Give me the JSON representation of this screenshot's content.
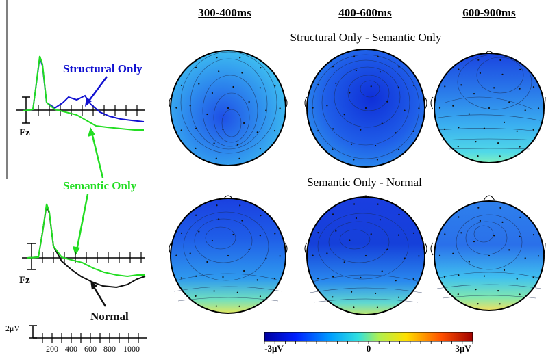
{
  "columns": [
    "300-400ms",
    "400-600ms",
    "600-900ms"
  ],
  "rows": [
    {
      "title": "Structural Only - Semantic Only"
    },
    {
      "title": "Semantic Only - Normal"
    }
  ],
  "erp": {
    "channel": "Fz",
    "labels": {
      "structural": "Structural Only",
      "semantic": "Semantic Only",
      "normal": "Normal"
    },
    "colors": {
      "structural": "#1010d0",
      "semantic": "#22dd22",
      "normal": "#111111"
    },
    "scale_label": "2μV",
    "x_ticks": [
      "200",
      "400",
      "600",
      "800",
      "1000"
    ]
  },
  "colorbar": {
    "min_label": "-3μV",
    "mid_label": "0",
    "max_label": "3μV"
  }
}
